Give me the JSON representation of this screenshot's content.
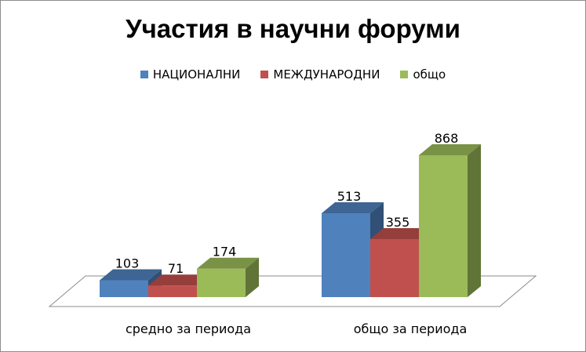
{
  "chart_data": {
    "type": "bar",
    "title": "Участия в научни форуми",
    "categories": [
      "средно за периода",
      "общо за периода"
    ],
    "series": [
      {
        "name": "НАЦИОНАЛНИ",
        "values": [
          103,
          513
        ]
      },
      {
        "name": "МЕЖДУНАРОДНИ",
        "values": [
          71,
          355
        ]
      },
      {
        "name": "общо",
        "values": [
          174,
          868
        ]
      }
    ],
    "xlabel": "",
    "ylabel": "",
    "legend_position": "top",
    "grid": false,
    "style": "3d-clustered"
  },
  "colors": {
    "НАЦИОНАЛНИ": "#4f81bd",
    "МЕЖДУНАРОДНИ": "#c0504d",
    "общо": "#9bbb59"
  }
}
